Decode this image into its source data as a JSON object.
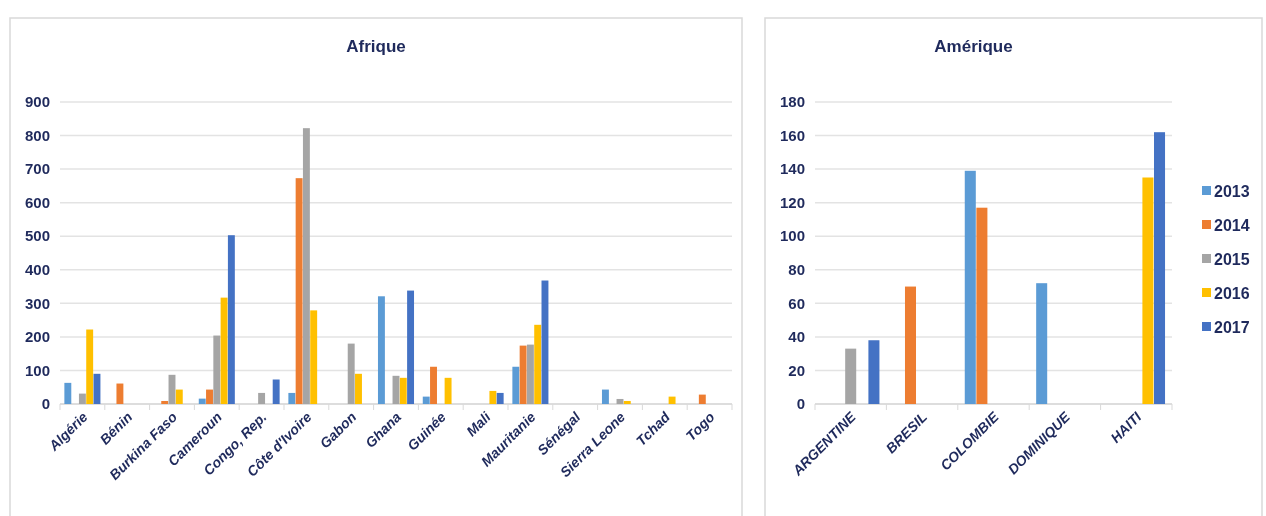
{
  "chart_data": [
    {
      "type": "bar",
      "title": "Afrique",
      "categories": [
        "Algérie",
        "Bénin",
        "Burkina Faso",
        "Cameroun",
        "Congo, Rep.",
        "Côte d'Ivoire",
        "Gabon",
        "Ghana",
        "Guinée",
        "Mali",
        "Mauritanie",
        "Sénégal",
        "Sierra Leone",
        "Tchad",
        "Togo"
      ],
      "series": [
        {
          "color": "#5b9bd5",
          "values": [
            63,
            null,
            null,
            16,
            null,
            33,
            null,
            321,
            22,
            null,
            111,
            null,
            43,
            null,
            null
          ]
        },
        {
          "color": "#ed7d31",
          "values": [
            null,
            61,
            9,
            43,
            null,
            673,
            null,
            null,
            111,
            null,
            174,
            null,
            null,
            null,
            28
          ]
        },
        {
          "color": "#a5a5a5",
          "values": [
            31,
            null,
            87,
            204,
            33,
            822,
            180,
            84,
            null,
            null,
            177,
            null,
            15,
            null,
            null
          ]
        },
        {
          "color": "#ffc000",
          "values": [
            222,
            null,
            43,
            317,
            null,
            279,
            90,
            78,
            78,
            39,
            236,
            null,
            9,
            22,
            null
          ]
        },
        {
          "color": "#4472c4",
          "values": [
            90,
            null,
            null,
            503,
            73,
            null,
            null,
            338,
            null,
            33,
            368,
            null,
            null,
            null,
            null
          ]
        }
      ],
      "ylim": [
        0,
        900
      ],
      "yticks": [
        0,
        100,
        200,
        300,
        400,
        500,
        600,
        700,
        800,
        900
      ],
      "grid": "y",
      "legend": false
    },
    {
      "type": "bar",
      "title": "Amérique",
      "categories": [
        "ARGENTINE",
        "BRESIL",
        "COLOMBIE",
        "DOMINIQUE",
        "HAITI"
      ],
      "series": [
        {
          "name": "2013",
          "color": "#5b9bd5",
          "values": [
            null,
            null,
            139,
            72,
            null
          ]
        },
        {
          "name": "2014",
          "color": "#ed7d31",
          "values": [
            null,
            70,
            117,
            null,
            null
          ]
        },
        {
          "name": "2015",
          "color": "#a5a5a5",
          "values": [
            33,
            null,
            null,
            null,
            null
          ]
        },
        {
          "name": "2016",
          "color": "#ffc000",
          "values": [
            null,
            null,
            null,
            null,
            135
          ]
        },
        {
          "name": "2017",
          "color": "#4472c4",
          "values": [
            38,
            null,
            null,
            null,
            162
          ]
        }
      ],
      "ylim": [
        0,
        180
      ],
      "yticks": [
        0,
        20,
        40,
        60,
        80,
        100,
        120,
        140,
        160,
        180
      ],
      "grid": "y",
      "legend": "right"
    }
  ]
}
